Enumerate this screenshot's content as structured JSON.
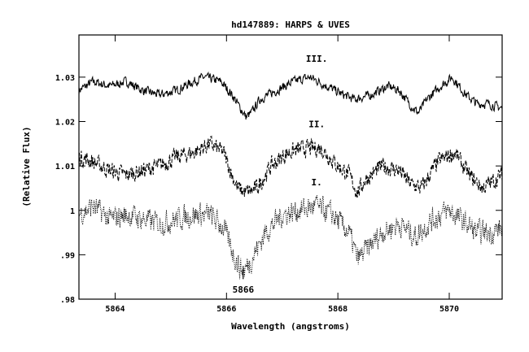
{
  "chart_data": {
    "type": "line",
    "title": "hd147889: HARPS & UVES",
    "xlabel": "Wavelength (angstroms)",
    "ylabel": "(Relative Flux)",
    "xlim": [
      5863.35,
      5870.95
    ],
    "ylim": [
      0.98,
      1.0395
    ],
    "x_ticks": [
      5864,
      5866,
      5868,
      5870
    ],
    "x_tick_labels": [
      "5864",
      "5866",
      "5868",
      "5870"
    ],
    "y_ticks": [
      0.98,
      0.99,
      1.0,
      1.01,
      1.02,
      1.03
    ],
    "y_tick_labels": [
      ".98",
      ".99",
      "1",
      "1.01",
      "1.02",
      "1.03"
    ],
    "grid": false,
    "legend": "none",
    "series": [
      {
        "style": "solid",
        "noise": 0.0014,
        "points": [
          [
            5863.35,
            1.027
          ],
          [
            5863.6,
            1.029
          ],
          [
            5863.9,
            1.028
          ],
          [
            5864.2,
            1.029
          ],
          [
            5864.5,
            1.027
          ],
          [
            5864.8,
            1.026
          ],
          [
            5865.1,
            1.027
          ],
          [
            5865.4,
            1.029
          ],
          [
            5865.6,
            1.03
          ],
          [
            5865.9,
            1.029
          ],
          [
            5866.1,
            1.026
          ],
          [
            5866.2,
            1.024
          ],
          [
            5866.35,
            1.021
          ],
          [
            5866.45,
            1.022
          ],
          [
            5866.6,
            1.025
          ],
          [
            5866.9,
            1.027
          ],
          [
            5867.2,
            1.029
          ],
          [
            5867.5,
            1.03
          ],
          [
            5867.8,
            1.028
          ],
          [
            5868.1,
            1.026
          ],
          [
            5868.3,
            1.025
          ],
          [
            5868.6,
            1.026
          ],
          [
            5868.9,
            1.028
          ],
          [
            5869.1,
            1.027
          ],
          [
            5869.35,
            1.023
          ],
          [
            5869.45,
            1.022
          ],
          [
            5869.6,
            1.025
          ],
          [
            5869.85,
            1.028
          ],
          [
            5870.05,
            1.03
          ],
          [
            5870.3,
            1.026
          ],
          [
            5870.5,
            1.024
          ],
          [
            5870.7,
            1.024
          ],
          [
            5870.95,
            1.023
          ]
        ]
      },
      {
        "style": "dashed",
        "noise": 0.0026,
        "points": [
          [
            5863.35,
            1.012
          ],
          [
            5863.6,
            1.011
          ],
          [
            5863.9,
            1.009
          ],
          [
            5864.2,
            1.008
          ],
          [
            5864.5,
            1.009
          ],
          [
            5864.8,
            1.01
          ],
          [
            5865.1,
            1.012
          ],
          [
            5865.4,
            1.013
          ],
          [
            5865.7,
            1.015
          ],
          [
            5865.95,
            1.013
          ],
          [
            5866.1,
            1.008
          ],
          [
            5866.2,
            1.005
          ],
          [
            5866.35,
            1.004
          ],
          [
            5866.55,
            1.005
          ],
          [
            5866.8,
            1.01
          ],
          [
            5867.1,
            1.013
          ],
          [
            5867.4,
            1.014
          ],
          [
            5867.7,
            1.014
          ],
          [
            5868.0,
            1.01
          ],
          [
            5868.2,
            1.008
          ],
          [
            5868.35,
            1.004
          ],
          [
            5868.5,
            1.007
          ],
          [
            5868.8,
            1.01
          ],
          [
            5869.1,
            1.009
          ],
          [
            5869.3,
            1.006
          ],
          [
            5869.5,
            1.005
          ],
          [
            5869.8,
            1.011
          ],
          [
            5870.1,
            1.013
          ],
          [
            5870.35,
            1.008
          ],
          [
            5870.6,
            1.005
          ],
          [
            5870.95,
            1.008
          ]
        ]
      },
      {
        "style": "dotted",
        "noise": 0.0036,
        "points": [
          [
            5863.35,
            0.999
          ],
          [
            5863.6,
            1.001
          ],
          [
            5863.9,
            0.998
          ],
          [
            5864.2,
            0.999
          ],
          [
            5864.5,
            0.998
          ],
          [
            5864.8,
            0.997
          ],
          [
            5865.1,
            0.998
          ],
          [
            5865.4,
            0.999
          ],
          [
            5865.7,
            0.999
          ],
          [
            5865.95,
            0.996
          ],
          [
            5866.1,
            0.991
          ],
          [
            5866.2,
            0.988
          ],
          [
            5866.3,
            0.986
          ],
          [
            5866.45,
            0.989
          ],
          [
            5866.7,
            0.995
          ],
          [
            5867.0,
            0.999
          ],
          [
            5867.3,
            1.0
          ],
          [
            5867.6,
            1.001
          ],
          [
            5867.9,
            0.999
          ],
          [
            5868.2,
            0.995
          ],
          [
            5868.35,
            0.989
          ],
          [
            5868.5,
            0.991
          ],
          [
            5868.8,
            0.995
          ],
          [
            5869.1,
            0.997
          ],
          [
            5869.4,
            0.994
          ],
          [
            5869.7,
            0.998
          ],
          [
            5870.0,
            1.0
          ],
          [
            5870.3,
            0.997
          ],
          [
            5870.5,
            0.995
          ],
          [
            5870.7,
            0.995
          ],
          [
            5870.95,
            0.996
          ]
        ]
      }
    ],
    "annotations": [
      {
        "text": "III.",
        "x": 5867.62,
        "y": 1.0335
      },
      {
        "text": "II.",
        "x": 5867.62,
        "y": 1.0187
      },
      {
        "text": "I.",
        "x": 5867.62,
        "y": 1.0056
      },
      {
        "text": "5866",
        "x": 5866.3,
        "y": 0.9815
      }
    ],
    "marker_line": {
      "x": 5866.3,
      "y_from": 0.9845,
      "y_to": 0.9875
    }
  }
}
